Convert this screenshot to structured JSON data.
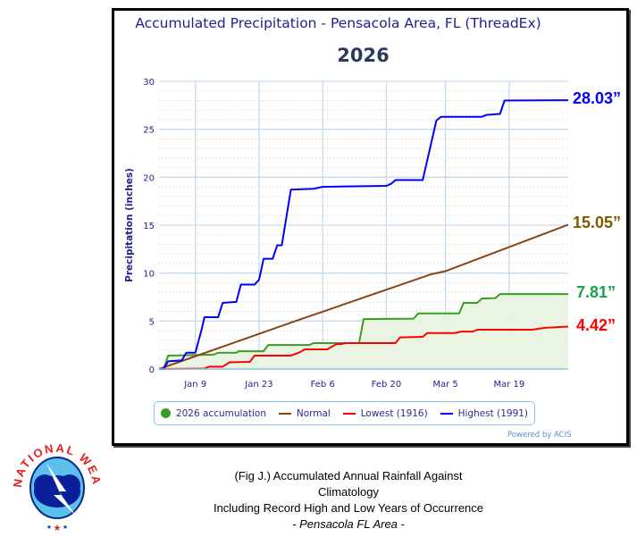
{
  "chart_data": {
    "type": "line",
    "title": "Accumulated Precipitation - Pensacola Area, FL (ThreadEx)",
    "subtitle": "2026",
    "xlabel": "",
    "ylabel": "Precipitation (inches)",
    "xlim_days_since_jan1": [
      0,
      90
    ],
    "ylim": [
      0,
      30
    ],
    "yticks": [
      0,
      5,
      10,
      15,
      20,
      25,
      30
    ],
    "xticks": [
      {
        "day": 8,
        "label": "Jan 9"
      },
      {
        "day": 22,
        "label": "Jan 23"
      },
      {
        "day": 36,
        "label": "Feb 6"
      },
      {
        "day": 50,
        "label": "Feb 20"
      },
      {
        "day": 63,
        "label": "Mar 5"
      },
      {
        "day": 77,
        "label": "Mar 19"
      }
    ],
    "grid": true,
    "legend_position": "bottom",
    "series": [
      {
        "name": "2026 accumulation",
        "color": "#3a9d23",
        "fill": true,
        "end_label": "7.81”",
        "end_label_color": "#16a34a",
        "points": [
          [
            0,
            0
          ],
          [
            1,
            0
          ],
          [
            2,
            1.4
          ],
          [
            12,
            1.5
          ],
          [
            13,
            1.7
          ],
          [
            17,
            1.7
          ],
          [
            17.5,
            1.85
          ],
          [
            23,
            1.85
          ],
          [
            24,
            2.5
          ],
          [
            33,
            2.5
          ],
          [
            34,
            2.7
          ],
          [
            44,
            2.7
          ],
          [
            45,
            5.2
          ],
          [
            56,
            5.25
          ],
          [
            57,
            5.8
          ],
          [
            66,
            5.8
          ],
          [
            67,
            6.9
          ],
          [
            70,
            6.9
          ],
          [
            71,
            7.35
          ],
          [
            74,
            7.4
          ],
          [
            75,
            7.81
          ],
          [
            90,
            7.81
          ]
        ]
      },
      {
        "name": "Normal",
        "color": "#8b4513",
        "end_label": "15.05”",
        "end_label_color": "#7a5c00",
        "points": [
          [
            0,
            0
          ],
          [
            30,
            5.0
          ],
          [
            60,
            9.9
          ],
          [
            63,
            10.2
          ],
          [
            90,
            15.05
          ]
        ]
      },
      {
        "name": "Lowest (1916)",
        "color": "#ff0000",
        "end_label": "4.42”",
        "end_label_color": "#ff0000",
        "points": [
          [
            0,
            0
          ],
          [
            10,
            0.05
          ],
          [
            11,
            0.25
          ],
          [
            14,
            0.25
          ],
          [
            15.5,
            0.7
          ],
          [
            20,
            0.75
          ],
          [
            21,
            1.4
          ],
          [
            29,
            1.4
          ],
          [
            31,
            1.75
          ],
          [
            32,
            2.05
          ],
          [
            37,
            2.05
          ],
          [
            39,
            2.6
          ],
          [
            40,
            2.6
          ],
          [
            41,
            2.7
          ],
          [
            52,
            2.7
          ],
          [
            53,
            3.3
          ],
          [
            58,
            3.35
          ],
          [
            59,
            3.75
          ],
          [
            65,
            3.75
          ],
          [
            66.5,
            3.9
          ],
          [
            69,
            3.9
          ],
          [
            70,
            4.1
          ],
          [
            82,
            4.1
          ],
          [
            85,
            4.3
          ],
          [
            90,
            4.42
          ]
        ]
      },
      {
        "name": "Highest (1991)",
        "color": "#0000ff",
        "end_label": "28.03”",
        "end_label_color": "#0000ff",
        "points": [
          [
            0,
            0
          ],
          [
            1,
            0
          ],
          [
            2,
            0.8
          ],
          [
            5,
            0.9
          ],
          [
            6,
            1.7
          ],
          [
            8,
            1.7
          ],
          [
            9.3,
            4
          ],
          [
            10,
            5.4
          ],
          [
            13,
            5.4
          ],
          [
            14,
            6.9
          ],
          [
            17,
            7.0
          ],
          [
            18,
            8.8
          ],
          [
            21,
            8.8
          ],
          [
            22,
            9.3
          ],
          [
            23,
            11.5
          ],
          [
            25,
            11.5
          ],
          [
            26,
            12.9
          ],
          [
            27,
            12.9
          ],
          [
            29,
            18.7
          ],
          [
            34,
            18.8
          ],
          [
            36,
            19.0
          ],
          [
            50,
            19.1
          ],
          [
            51,
            19.3
          ],
          [
            52,
            19.7
          ],
          [
            58,
            19.7
          ],
          [
            61,
            25.9
          ],
          [
            62,
            26.3
          ],
          [
            71,
            26.3
          ],
          [
            72,
            26.5
          ],
          [
            75,
            26.6
          ],
          [
            76,
            28.0
          ],
          [
            90,
            28.03
          ]
        ]
      }
    ]
  },
  "credit": "Powered by ACIS",
  "caption": {
    "line1": "(Fig J.) Accumulated Annual Rainfall Against Climatology",
    "line2": "Including Record High and Low Years of Occurrence",
    "line3": "- Pensacola FL Area -"
  },
  "logo_text": "NATIONAL WEATHER SERVICE"
}
